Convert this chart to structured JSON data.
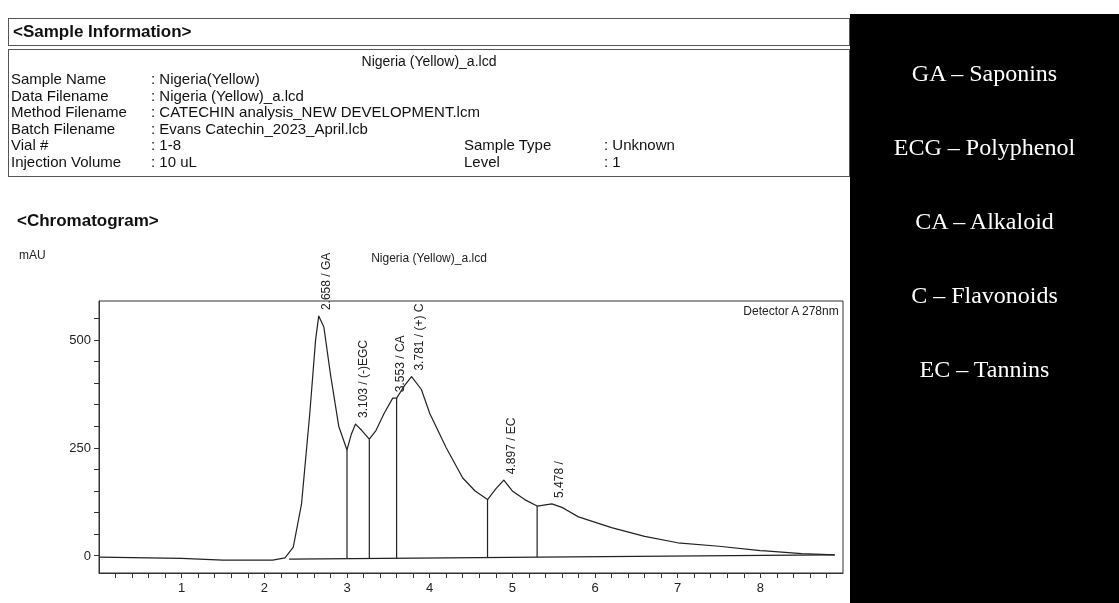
{
  "chart_data": [
    {
      "type": "other",
      "title": "<Sample Information>",
      "subtitle": "Nigeria (Yellow)_a.lcd",
      "annotations": [
        "Sample Name",
        ": Nigeria(Yellow)",
        "Data Filename",
        ": Nigeria (Yellow)_a.lcd",
        "Method Filename",
        ": CATECHIN analysis_NEW DEVELOPMENT.lcm",
        "Batch Filename",
        ": Evans Catechin_2023_April.lcb",
        "Vial #",
        ": 1-8",
        "Injection Volume",
        ": 10 uL",
        "Sample Type",
        ": Unknown",
        "Level",
        ": 1"
      ]
    },
    {
      "type": "line",
      "title": "<Chromatogram>",
      "subtitle": "Nigeria (Yellow)_a.lcd",
      "ylabel": "mAU",
      "xlim": [
        0,
        9
      ],
      "ylim": [
        -40,
        590
      ],
      "xticks": [
        {
          "value": 0.2,
          "label": null
        },
        {
          "value": 0.4,
          "label": null
        },
        {
          "value": 0.6,
          "label": null
        },
        {
          "value": 0.8,
          "label": null
        },
        1,
        {
          "value": 1.2,
          "label": null
        },
        {
          "value": 1.4,
          "label": null
        },
        {
          "value": 1.6,
          "label": null
        },
        {
          "value": 1.8,
          "label": null
        },
        2,
        {
          "value": 2.2,
          "label": null
        },
        {
          "value": 2.4,
          "label": null
        },
        {
          "value": 2.6,
          "label": null
        },
        {
          "value": 2.8,
          "label": null
        },
        3,
        {
          "value": 3.2,
          "label": null
        },
        {
          "value": 3.4,
          "label": null
        },
        {
          "value": 3.6,
          "label": null
        },
        {
          "value": 3.8,
          "label": null
        },
        4,
        {
          "value": 4.2,
          "label": null
        },
        {
          "value": 4.4,
          "label": null
        },
        {
          "value": 4.6,
          "label": null
        },
        {
          "value": 4.8,
          "label": null
        },
        5,
        {
          "value": 5.2,
          "label": null
        },
        {
          "value": 5.4,
          "label": null
        },
        {
          "value": 5.6,
          "label": null
        },
        {
          "value": 5.8,
          "label": null
        },
        6,
        {
          "value": 6.2,
          "label": null
        },
        {
          "value": 6.4,
          "label": null
        },
        {
          "value": 6.6,
          "label": null
        },
        {
          "value": 6.8,
          "label": null
        },
        7,
        {
          "value": 7.2,
          "label": null
        },
        {
          "value": 7.4,
          "label": null
        },
        {
          "value": 7.6,
          "label": null
        },
        {
          "value": 7.8,
          "label": null
        },
        8,
        {
          "value": 8.2,
          "label": null
        },
        {
          "value": 8.4,
          "label": null
        },
        {
          "value": 8.6,
          "label": null
        },
        {
          "value": 8.8,
          "label": null
        }
      ],
      "yticks": [
        0,
        {
          "value": 50,
          "label": null
        },
        {
          "value": 100,
          "label": null
        },
        {
          "value": 150,
          "label": null
        },
        {
          "value": 200,
          "label": null
        },
        250,
        {
          "value": 300,
          "label": null
        },
        {
          "value": 350,
          "label": null
        },
        {
          "value": 400,
          "label": null
        },
        {
          "value": 450,
          "label": null
        },
        500,
        {
          "value": 550,
          "label": null
        }
      ],
      "series": [
        {
          "color": "#222222",
          "x": [
            0,
            1,
            1.5,
            2.1,
            2.25,
            2.35,
            2.45,
            2.55,
            2.62,
            2.658,
            2.72,
            2.8,
            2.9,
            3.0,
            3.05,
            3.103,
            3.18,
            3.27,
            3.35,
            3.45,
            3.553,
            3.6,
            3.7,
            3.781,
            3.9,
            4.0,
            4.2,
            4.4,
            4.55,
            4.7,
            4.8,
            4.897,
            5.0,
            5.15,
            5.3,
            5.478,
            5.6,
            5.8,
            6.2,
            6.6,
            7.0,
            7.5,
            8.0,
            8.5,
            8.9
          ],
          "values": [
            -3,
            -6,
            -10,
            -10,
            -5,
            20,
            120,
            330,
            500,
            555,
            530,
            420,
            300,
            245,
            280,
            305,
            290,
            270,
            290,
            330,
            365,
            365,
            395,
            415,
            385,
            330,
            250,
            180,
            150,
            130,
            155,
            175,
            150,
            130,
            115,
            120,
            112,
            90,
            65,
            45,
            30,
            22,
            12,
            5,
            2
          ]
        },
        {
          "color": "#222222",
          "x": [
            2.3,
            8.9
          ],
          "values": [
            -8,
            2
          ]
        },
        {
          "color": "#222222",
          "x": [
            3.0,
            3.0
          ],
          "values": [
            -7,
            245
          ]
        },
        {
          "color": "#222222",
          "x": [
            3.27,
            3.27
          ],
          "values": [
            -6,
            270
          ]
        },
        {
          "color": "#222222",
          "x": [
            3.6,
            3.6
          ],
          "values": [
            -6,
            365
          ]
        },
        {
          "color": "#222222",
          "x": [
            4.7,
            4.7
          ],
          "values": [
            -4,
            130
          ]
        },
        {
          "color": "#222222",
          "x": [
            5.3,
            5.3
          ],
          "values": [
            -3,
            115
          ]
        }
      ],
      "annotations": [
        {
          "text": "2.658 / GA",
          "x": 2.658,
          "y": 555
        },
        {
          "text": "3.103 / (-)EGC",
          "x": 3.103,
          "y": 305
        },
        {
          "text": "3.553 / CA",
          "x": 3.553,
          "y": 365
        },
        {
          "text": "3.781 / (+) C",
          "x": 3.781,
          "y": 415
        },
        {
          "text": "4.897 / EC",
          "x": 4.897,
          "y": 175
        },
        {
          "text": "5.478 /",
          "x": 5.478,
          "y": 120
        },
        "Detector A 278nm"
      ]
    },
    {
      "type": "other",
      "annotations": [
        "GA – Saponins",
        "ECG – Polyphenol",
        "CA – Alkaloid",
        "C – Flavonoids",
        "EC – Tannins"
      ]
    }
  ]
}
